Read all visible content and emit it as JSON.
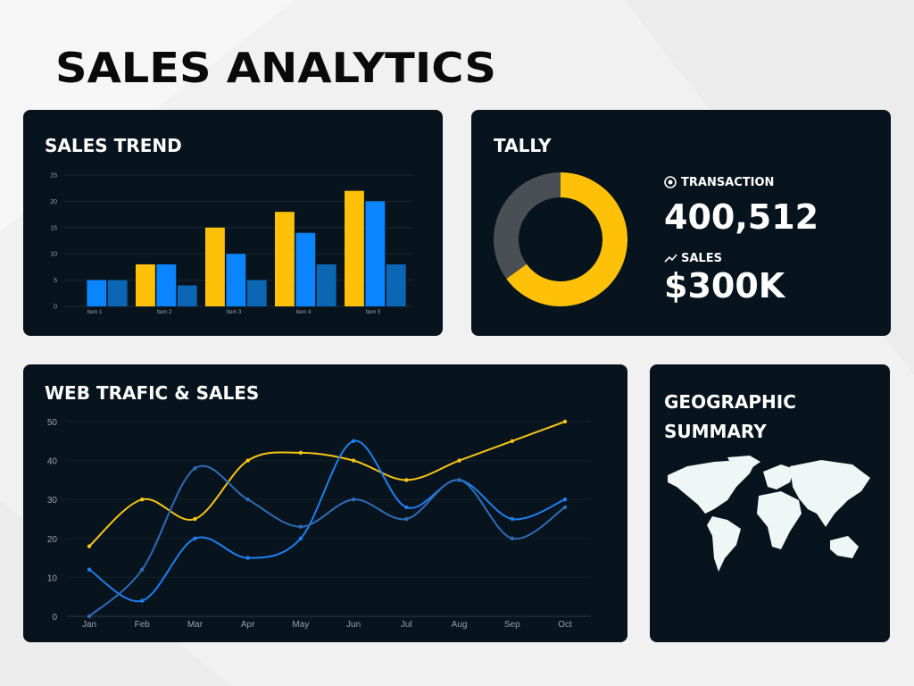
{
  "header": {
    "title": "SALES ANALYTICS"
  },
  "chart_data": [
    {
      "type": "bar",
      "title": "SALES TREND",
      "categories": [
        "Item 1",
        "Item 2",
        "Item 3",
        "Item 4",
        "Item 5"
      ],
      "series": [
        {
          "color": "#ffc107",
          "values": [
            0,
            8,
            15,
            18,
            22
          ]
        },
        {
          "color": "#0a84ff",
          "values": [
            5,
            8,
            10,
            14,
            20
          ]
        },
        {
          "color": "#0b66b3",
          "values": [
            5,
            4,
            5,
            8,
            8
          ]
        }
      ],
      "ylim": [
        0,
        25
      ],
      "yticks": [
        0,
        5,
        10,
        15,
        20,
        25
      ],
      "grid": true
    },
    {
      "type": "pie",
      "title": "TALLY",
      "values": [
        65,
        35
      ],
      "colors": [
        "#ffc107",
        "#4a4f55"
      ],
      "donut": true
    },
    {
      "type": "line",
      "title": "WEB TRAFIC & SALES",
      "categories": [
        "Jan",
        "Feb",
        "Mar",
        "Apr",
        "May",
        "Jun",
        "Jul",
        "Aug",
        "Sep",
        "Oct"
      ],
      "series": [
        {
          "color": "#f5c518",
          "values": [
            18,
            30,
            25,
            40,
            42,
            40,
            35,
            40,
            45,
            50
          ]
        },
        {
          "color": "#1f7ff0",
          "values": [
            12,
            4,
            20,
            15,
            20,
            45,
            28,
            35,
            25,
            30
          ]
        },
        {
          "color": "#2f6cb8",
          "values": [
            0,
            12,
            38,
            30,
            23,
            30,
            25,
            35,
            20,
            28
          ]
        }
      ],
      "ylim": [
        0,
        50
      ],
      "yticks": [
        0,
        10,
        20,
        30,
        40,
        50
      ],
      "grid": true,
      "smooth": true
    }
  ],
  "tally": {
    "transaction_label": "TRANSACTION",
    "transaction_value": "400,512",
    "sales_label": "SALES",
    "sales_value": "$300K"
  },
  "geo": {
    "title_lines": [
      "GEOGRAPHIC",
      "SUMMARY"
    ]
  }
}
